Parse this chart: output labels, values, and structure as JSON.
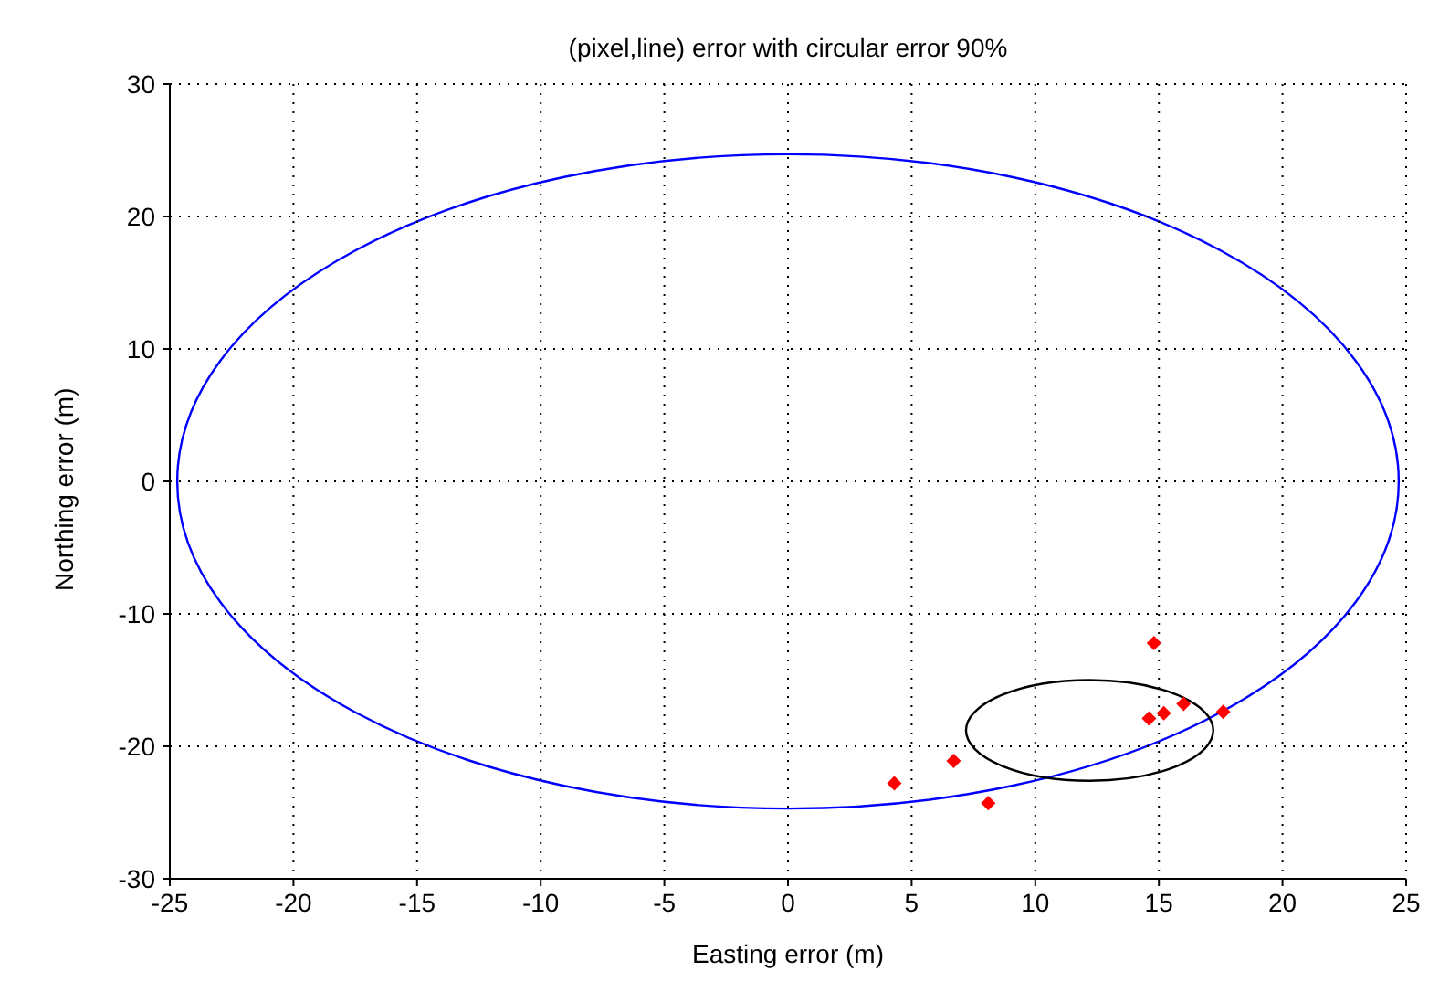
{
  "chart_data": {
    "type": "scatter",
    "title": "(pixel,line) error with circular error 90%",
    "xlabel": "Easting error (m)",
    "ylabel": "Northing error (m)",
    "xlim": [
      -25,
      25
    ],
    "ylim": [
      -30,
      30
    ],
    "xticks": [
      -25,
      -20,
      -15,
      -10,
      -5,
      0,
      5,
      10,
      15,
      20,
      25
    ],
    "yticks": [
      -30,
      -20,
      -10,
      0,
      10,
      20,
      30
    ],
    "grid": true,
    "marker": "diamond",
    "series": [
      {
        "color": "#ff0000",
        "x": [
          4.3,
          6.7,
          8.1,
          14.8,
          14.6,
          15.2,
          16.0,
          17.6
        ],
        "values": [
          -22.8,
          -21.1,
          -24.3,
          -12.2,
          -17.9,
          -17.5,
          -16.8,
          -17.4
        ]
      }
    ]
  }
}
